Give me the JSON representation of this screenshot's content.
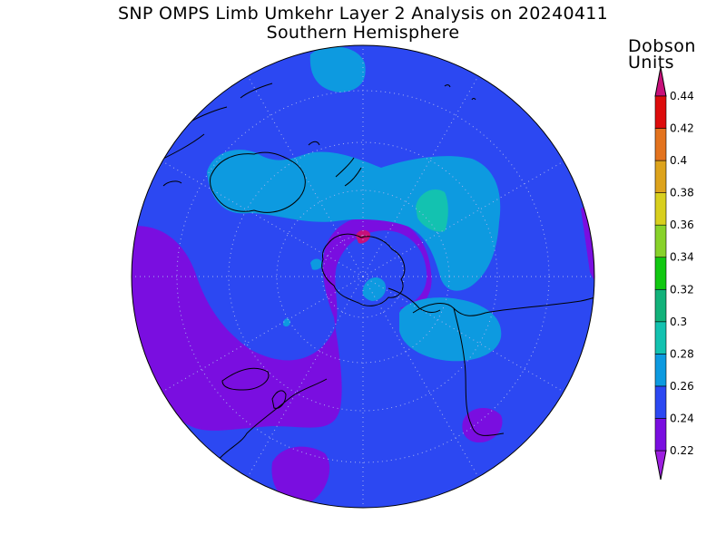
{
  "title": {
    "line1": "SNP OMPS Limb Umkehr Layer 2 Analysis on 20240411",
    "line2": "Southern Hemisphere"
  },
  "colorbar": {
    "units_line1": "Dobson",
    "units_line2": "Units",
    "levels": [
      "0.22",
      "0.24",
      "0.26",
      "0.28",
      "0.3",
      "0.32",
      "0.34",
      "0.36",
      "0.38",
      "0.4",
      "0.42",
      "0.44"
    ],
    "colors": [
      "#7a0ee0",
      "#2c48f2",
      "#0d9ae0",
      "#13c2b0",
      "#12b27a",
      "#11c811",
      "#88d22a",
      "#d8cf1e",
      "#dda31c",
      "#e3731e",
      "#dd0c0c",
      "#c8107a"
    ],
    "below_color": "#9d1fe0",
    "above_color": "#c8107a"
  },
  "map": {
    "projection": "polar-stereographic-south",
    "background_color": "#2c48f2",
    "grid": "dotted"
  }
}
